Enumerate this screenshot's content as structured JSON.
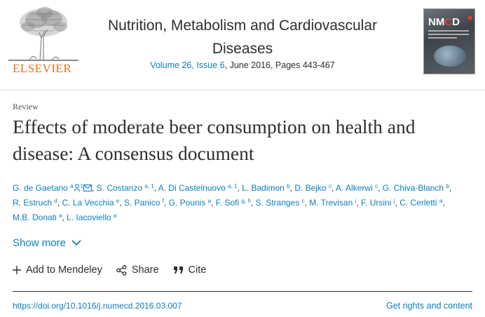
{
  "header": {
    "publisher": "ELSEVIER",
    "journal_title": "Nutrition, Metabolism and Cardiovascular Diseases",
    "volume_link": "Volume 26, Issue 6",
    "issue_rest": ", June 2016, Pages 443-467",
    "cover_abbr_prefix": "NM",
    "cover_abbr_accent": "C",
    "cover_abbr_suffix": "D"
  },
  "article": {
    "type": "Review",
    "title": "Effects of moderate beer consumption on health and disease: A consensus document",
    "authors": [
      {
        "name": "G. de Gaetano",
        "sup": "a",
        "icons": [
          "person-icon",
          "ref-1",
          "envelope-icon"
        ]
      },
      {
        "name": "S. Costanzo",
        "sup": "a, 1"
      },
      {
        "name": "A. Di Castelnuovo",
        "sup": "a, 1"
      },
      {
        "name": "L. Badimon",
        "sup": "b"
      },
      {
        "name": "D. Bejko",
        "sup": "c"
      },
      {
        "name": "A. Alkerwi",
        "sup": "c"
      },
      {
        "name": "G. Chiva-Blanch",
        "sup": "b"
      },
      {
        "name": "R. Estruch",
        "sup": "d"
      },
      {
        "name": "C. La Vecchia",
        "sup": "e"
      },
      {
        "name": "S. Panico",
        "sup": "f"
      },
      {
        "name": "G. Pounis",
        "sup": "a"
      },
      {
        "name": "F. Sofi",
        "sup": "g, h"
      },
      {
        "name": "S. Stranges",
        "sup": "c"
      },
      {
        "name": "M. Trevisan",
        "sup": "i"
      },
      {
        "name": "F. Ursini",
        "sup": "j"
      },
      {
        "name": "C. Cerletti",
        "sup": "a"
      },
      {
        "name": "M.B. Donati",
        "sup": "a"
      },
      {
        "name": "L. Iacoviello",
        "sup": "a"
      }
    ],
    "first_author_ref": "1",
    "show_more": "Show more"
  },
  "actions": {
    "mendeley": "Add to Mendeley",
    "share": "Share",
    "cite": "Cite"
  },
  "footer": {
    "doi": "https://doi.org/10.1016/j.numecd.2016.03.007",
    "rights": "Get rights and content"
  },
  "colors": {
    "link": "#0c7dbb",
    "text": "#2e2e2e",
    "publisher_orange": "#e9711c"
  }
}
